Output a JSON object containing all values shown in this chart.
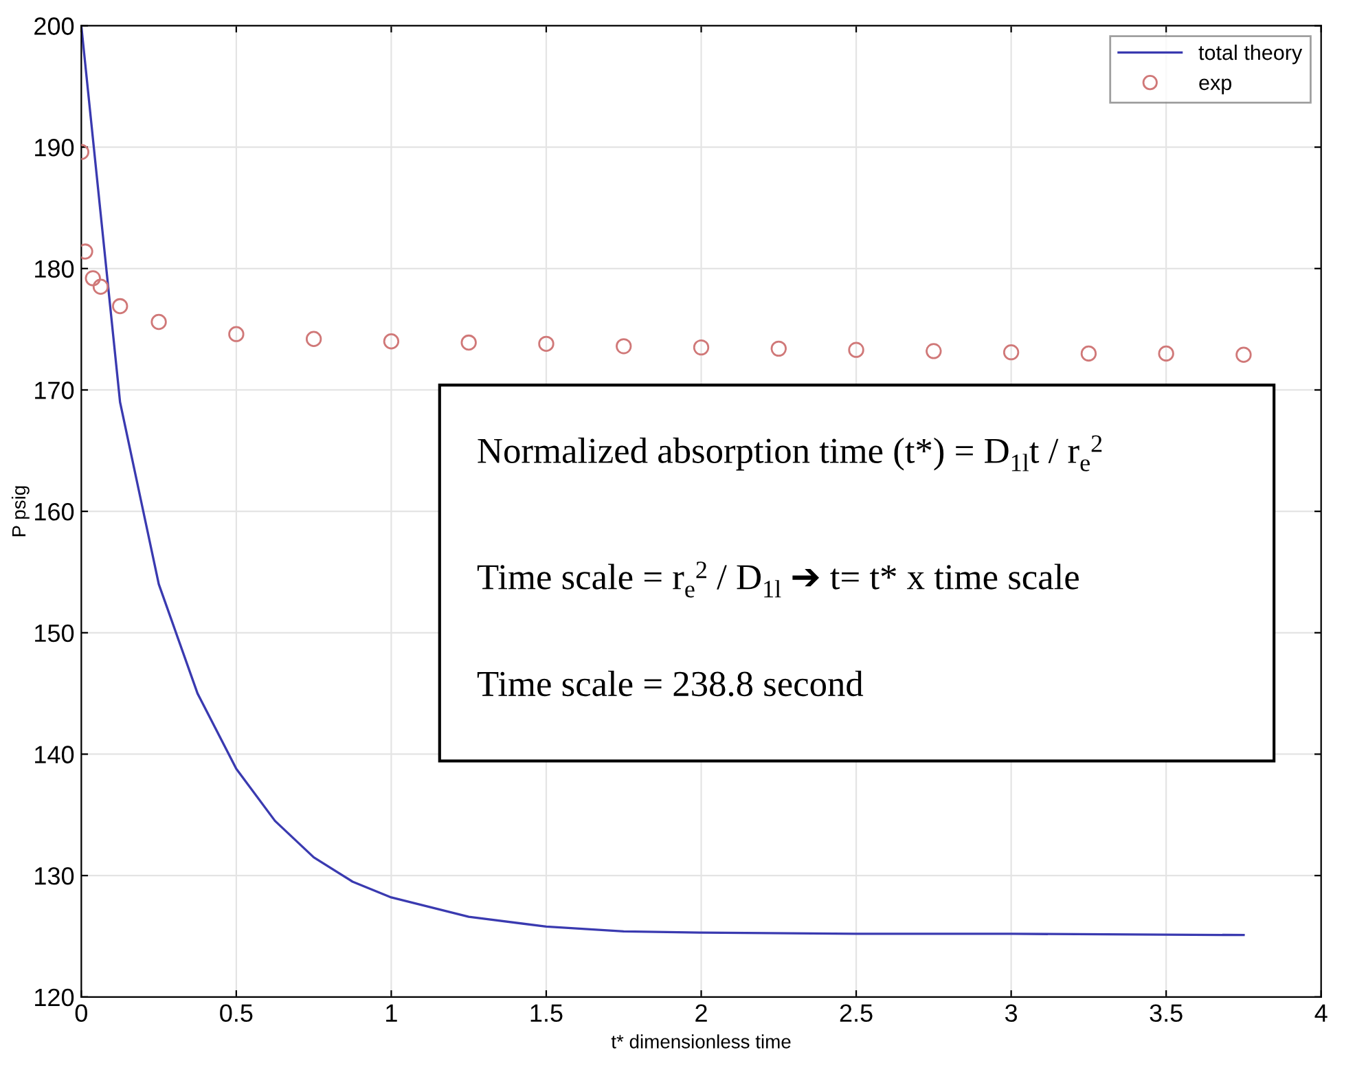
{
  "chart_data": {
    "type": "line",
    "xlabel": "t* dimensionless time",
    "ylabel": "P psig",
    "xlim": [
      0,
      4
    ],
    "xticks": [
      0,
      0.5,
      1,
      1.5,
      2,
      2.5,
      3,
      3.5,
      4
    ],
    "ylim": [
      120,
      200
    ],
    "yticks": [
      120,
      130,
      140,
      150,
      160,
      170,
      180,
      190,
      200
    ],
    "grid": true,
    "legend": "top right",
    "series": [
      {
        "name": "total theory",
        "color": "#3a3ab0",
        "marker": "none",
        "x": [
          0,
          0.125,
          0.25,
          0.375,
          0.5,
          0.625,
          0.75,
          0.875,
          1.0,
          1.25,
          1.5,
          1.75,
          2.0,
          2.5,
          3.0,
          3.75
        ],
        "values": [
          200,
          169,
          154,
          145,
          138.8,
          134.5,
          131.5,
          129.5,
          128.2,
          126.6,
          125.8,
          125.4,
          125.3,
          125.2,
          125.2,
          125.1
        ]
      },
      {
        "name": "exp",
        "type": "scatter",
        "color": "#d07878",
        "marker": "circle",
        "x": [
          0,
          0.0125,
          0.0375,
          0.0625,
          0.125,
          0.25,
          0.5,
          0.75,
          1.0,
          1.25,
          1.5,
          1.75,
          2.0,
          2.25,
          2.5,
          2.75,
          3.0,
          3.25,
          3.5,
          3.75
        ],
        "values": [
          189.6,
          181.4,
          179.2,
          178.5,
          176.9,
          175.6,
          174.6,
          174.2,
          174.0,
          173.9,
          173.8,
          173.6,
          173.5,
          173.4,
          173.3,
          173.2,
          173.1,
          173.0,
          173.0,
          172.9
        ]
      }
    ],
    "annotations": [
      "Normalized absorption time (t*) = D$_{1l}$t / r$_{e}$$^{2}$",
      "Time scale = r$_{e}$$^{2}$ / D$_{1l}$ ➔ t= t* x time scale",
      "Time scale = 238.8 second"
    ]
  }
}
